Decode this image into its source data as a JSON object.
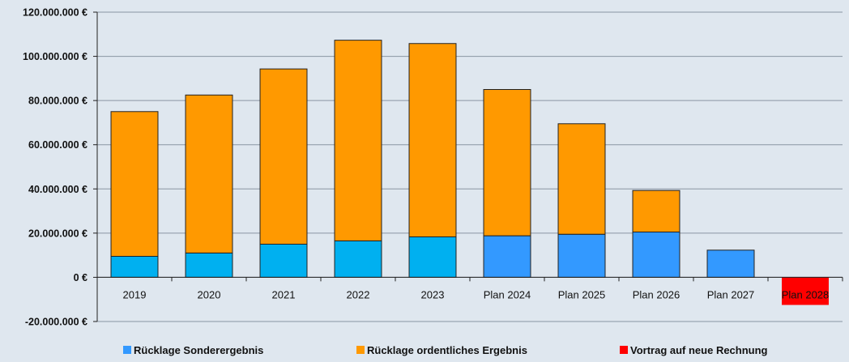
{
  "chart_data": {
    "type": "bar",
    "stacked": true,
    "categories": [
      "2019",
      "2020",
      "2021",
      "2022",
      "2023",
      "Plan 2024",
      "Plan 2025",
      "Plan 2026",
      "Plan 2027",
      "Plan 2028"
    ],
    "series": [
      {
        "name": "Rücklage Sonderergebnis",
        "values": [
          9500000,
          11000000,
          15000000,
          16500000,
          18300000,
          18800000,
          19500000,
          20500000,
          12300000,
          0
        ],
        "colors": [
          "#00b0f0",
          "#00b0f0",
          "#00b0f0",
          "#00b0f0",
          "#00b0f0",
          "#3399ff",
          "#3399ff",
          "#3399ff",
          "#3399ff",
          "#3399ff"
        ]
      },
      {
        "name": "Rücklage ordentliches Ergebnis",
        "values": [
          65500000,
          71500000,
          79300000,
          90800000,
          87500000,
          66200000,
          50000000,
          18800000,
          0,
          0
        ],
        "colors": [
          "#ff9900",
          "#ff9900",
          "#ff9900",
          "#ff9900",
          "#ff9900",
          "#ff9900",
          "#ff9900",
          "#ff9900",
          "#ff9900",
          "#ff9900"
        ]
      },
      {
        "name": "Vortrag auf neue Rechnung",
        "values": [
          0,
          0,
          0,
          0,
          0,
          0,
          0,
          0,
          0,
          -12500000
        ],
        "colors": [
          "#ff0000",
          "#ff0000",
          "#ff0000",
          "#ff0000",
          "#ff0000",
          "#ff0000",
          "#ff0000",
          "#ff0000",
          "#ff0000",
          "#ff0000"
        ]
      }
    ],
    "ylim": [
      -20000000,
      120000000
    ],
    "yticks": [
      120000000,
      100000000,
      80000000,
      60000000,
      40000000,
      20000000,
      0,
      -20000000
    ],
    "ytick_labels": [
      "120.000.000 €",
      "100.000.000 €",
      "80.000.000 €",
      "60.000.000 €",
      "40.000.000 €",
      "20.000.000 €",
      "0 €",
      "-20.000.000 €"
    ],
    "grid": true,
    "legend_position": "bottom",
    "legend": [
      {
        "label": "Rücklage Sonderergebnis",
        "color": "#3399ff"
      },
      {
        "label": "Rücklage ordentliches Ergebnis",
        "color": "#ff9900"
      },
      {
        "label": "Vortrag auf neue Rechnung",
        "color": "#ff0000"
      }
    ],
    "colors": {
      "background": "#dfe7ef",
      "gridline": "#8a96a3",
      "bar_outline": "#222222"
    }
  }
}
